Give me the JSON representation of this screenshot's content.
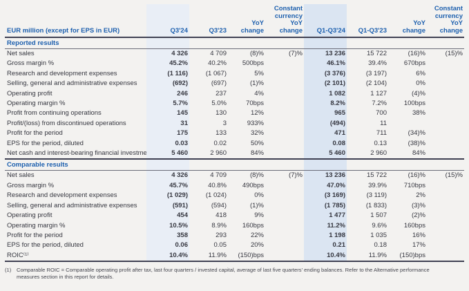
{
  "table": {
    "unit_label": "EUR million (except for EPS in EUR)",
    "columns": [
      "Q3'24",
      "Q3'23",
      "YoY\nchange",
      "Constant\ncurrency\nYoY\nchange",
      "Q1-Q3'24",
      "Q1-Q3'23",
      "YoY\nchange",
      "Constant\ncurrency\nYoY\nchange"
    ],
    "sections": [
      {
        "title": "Reported results",
        "rows": [
          [
            "Net sales",
            "4 326",
            "4 709",
            "(8)%",
            "(7)%",
            "13 236",
            "15 722",
            "(16)%",
            "(15)%"
          ],
          [
            "Gross margin %",
            "45.2%",
            "40.2%",
            "500bps",
            "",
            "46.1%",
            "39.4%",
            "670bps",
            ""
          ],
          [
            "Research and development expenses",
            "(1 116)",
            "(1 067)",
            "5%",
            "",
            "(3 376)",
            "(3 197)",
            "6%",
            ""
          ],
          [
            "Selling, general and administrative expenses",
            "(692)",
            "(697)",
            "(1)%",
            "",
            "(2 101)",
            "(2 104)",
            "0%",
            ""
          ],
          [
            "Operating profit",
            "246",
            "237",
            "4%",
            "",
            "1 082",
            "1 127",
            "(4)%",
            ""
          ],
          [
            "Operating margin %",
            "5.7%",
            "5.0%",
            "70bps",
            "",
            "8.2%",
            "7.2%",
            "100bps",
            ""
          ],
          [
            "Profit from continuing operations",
            "145",
            "130",
            "12%",
            "",
            "965",
            "700",
            "38%",
            ""
          ],
          [
            "Profit/(loss) from discontinued operations",
            "31",
            "3",
            "933%",
            "",
            "(494)",
            "11",
            "",
            ""
          ],
          [
            "Profit for the period",
            "175",
            "133",
            "32%",
            "",
            "471",
            "711",
            "(34)%",
            ""
          ],
          [
            "EPS for the period, diluted",
            "0.03",
            "0.02",
            "50%",
            "",
            "0.08",
            "0.13",
            "(38)%",
            ""
          ],
          [
            "Net cash and interest-bearing financial investments",
            "5 460",
            "2 960",
            "84%",
            "",
            "5 460",
            "2 960",
            "84%",
            ""
          ]
        ]
      },
      {
        "title": "Comparable results",
        "rows": [
          [
            "Net sales",
            "4 326",
            "4 709",
            "(8)%",
            "(7)%",
            "13 236",
            "15 722",
            "(16)%",
            "(15)%"
          ],
          [
            "Gross margin %",
            "45.7%",
            "40.8%",
            "490bps",
            "",
            "47.0%",
            "39.9%",
            "710bps",
            ""
          ],
          [
            "Research and development expenses",
            "(1 029)",
            "(1 024)",
            "0%",
            "",
            "(3 169)",
            "(3 119)",
            "2%",
            ""
          ],
          [
            "Selling, general and administrative expenses",
            "(591)",
            "(594)",
            "(1)%",
            "",
            "(1 785)",
            "(1 833)",
            "(3)%",
            ""
          ],
          [
            "Operating profit",
            "454",
            "418",
            "9%",
            "",
            "1 477",
            "1 507",
            "(2)%",
            ""
          ],
          [
            "Operating margin %",
            "10.5%",
            "8.9%",
            "160bps",
            "",
            "11.2%",
            "9.6%",
            "160bps",
            ""
          ],
          [
            "Profit for the period",
            "358",
            "293",
            "22%",
            "",
            "1 198",
            "1 035",
            "16%",
            ""
          ],
          [
            "EPS for the period, diluted",
            "0.06",
            "0.05",
            "20%",
            "",
            "0.21",
            "0.18",
            "17%",
            ""
          ],
          [
            "ROIC⁽¹⁾",
            "10.4%",
            "11.9%",
            "(150)bps",
            "",
            "10.4%",
            "11.9%",
            "(150)bps",
            ""
          ]
        ]
      }
    ],
    "footnote": {
      "marker": "(1)",
      "text": "Comparable ROIC = Comparable operating profit after tax, last four quarters / invested capital, average of last five quarters' ending balances. Refer to the Alternative performance measures section in this report for details."
    }
  },
  "colors": {
    "accent_blue": "#1c5fae",
    "highlight_q3_24": "#e9eef6",
    "highlight_q1_q3_24": "#dbe5f2",
    "background": "#f3f2f0"
  }
}
